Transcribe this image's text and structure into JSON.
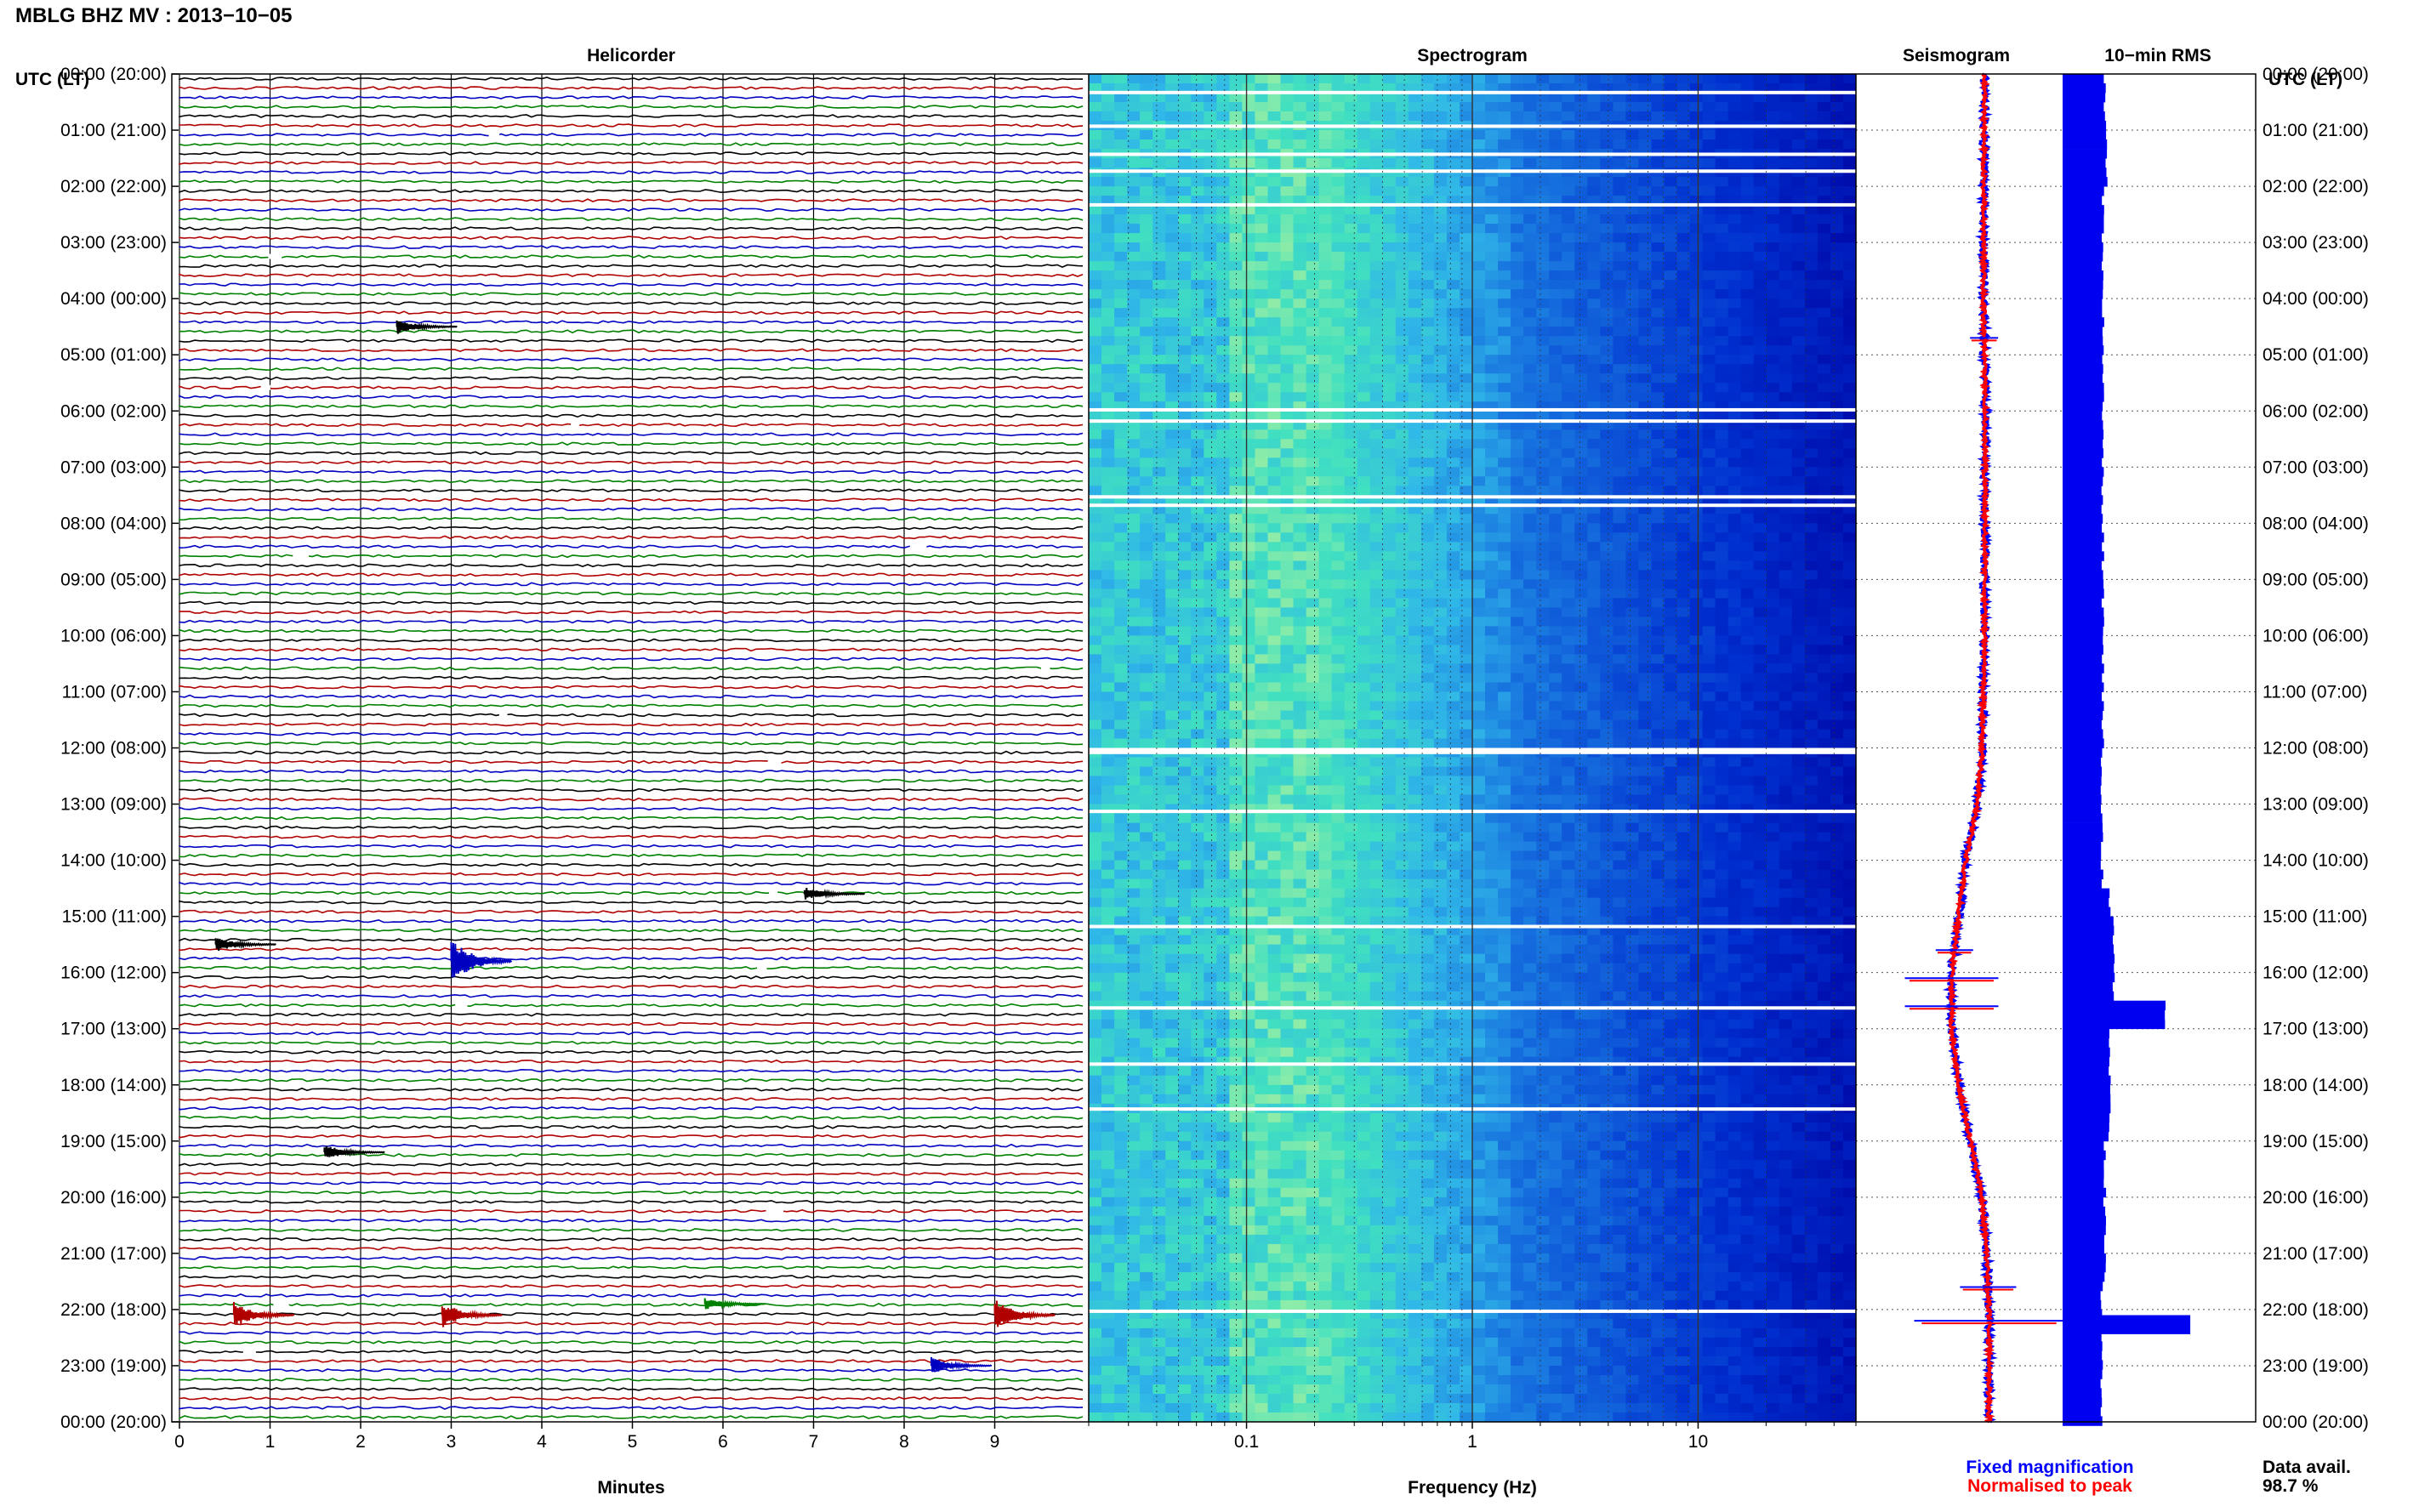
{
  "header": {
    "station_title": "MBLG BHZ MV : 2013−10−05"
  },
  "chart_data": [
    {
      "type": "line",
      "panel": "helicorder",
      "title": "Helicorder",
      "xlabel": "Minutes",
      "xlim": [
        0,
        10
      ],
      "x_ticks": [
        "0",
        "1",
        "2",
        "3",
        "4",
        "5",
        "6",
        "7",
        "8",
        "9"
      ],
      "ylabel_left": "UTC (LT)",
      "ylabel_right": "UTC (LT)",
      "y_ticks": [
        "00:00 (20:00)",
        "01:00 (21:00)",
        "02:00 (22:00)",
        "03:00 (23:00)",
        "04:00 (00:00)",
        "05:00 (01:00)",
        "06:00 (02:00)",
        "07:00 (03:00)",
        "08:00 (04:00)",
        "09:00 (05:00)",
        "10:00 (06:00)",
        "11:00 (07:00)",
        "12:00 (08:00)",
        "13:00 (09:00)",
        "14:00 (10:00)",
        "15:00 (11:00)",
        "16:00 (12:00)",
        "17:00 (13:00)",
        "18:00 (14:00)",
        "19:00 (15:00)",
        "20:00 (16:00)",
        "21:00 (17:00)",
        "22:00 (18:00)",
        "23:00 (19:00)",
        "00:00 (20:00)"
      ],
      "trace_colors": [
        "#000000",
        "#b00000",
        "#0000c0",
        "#008000"
      ],
      "lines_per_hour": 6,
      "events": [
        {
          "hour": 4.5,
          "minute": 2.4,
          "color": "#000000",
          "amp": 1.0
        },
        {
          "hour": 14.6,
          "minute": 6.9,
          "color": "#000000",
          "amp": 0.8
        },
        {
          "hour": 15.5,
          "minute": 0.4,
          "color": "#000000",
          "amp": 1.0
        },
        {
          "hour": 15.8,
          "minute": 3.0,
          "color": "#0000c0",
          "amp": 3.0
        },
        {
          "hour": 19.2,
          "minute": 1.6,
          "color": "#000000",
          "amp": 0.9
        },
        {
          "hour": 22.1,
          "minute": 0.6,
          "color": "#b00000",
          "amp": 1.6
        },
        {
          "hour": 22.1,
          "minute": 2.9,
          "color": "#b00000",
          "amp": 1.6
        },
        {
          "hour": 22.1,
          "minute": 9.0,
          "color": "#b00000",
          "amp": 2.0
        },
        {
          "hour": 21.9,
          "minute": 5.8,
          "color": "#008000",
          "amp": 0.7
        },
        {
          "hour": 23.0,
          "minute": 8.3,
          "color": "#0000c0",
          "amp": 1.0
        }
      ]
    },
    {
      "type": "heatmap",
      "panel": "spectrogram",
      "title": "Spectrogram",
      "xlabel": "Frequency (Hz)",
      "xscale": "log",
      "xlim": [
        0.02,
        50
      ],
      "x_ticks": [
        "0.1",
        "1",
        "10"
      ],
      "y_range_hours": [
        0,
        24
      ],
      "colormap": [
        "#0000a0",
        "#0030d0",
        "#1a7ae0",
        "#30b8e8",
        "#40e0c0",
        "#a8f0a0"
      ]
    },
    {
      "type": "line",
      "panel": "seismogram",
      "title": "Seismogram",
      "series": [
        {
          "name": "Fixed magnification",
          "color": "#0000ff"
        },
        {
          "name": "Normalised to peak",
          "color": "#ff0000"
        }
      ],
      "baseline": [
        [
          0,
          0.6
        ],
        [
          4,
          0.58
        ],
        [
          6,
          0.62
        ],
        [
          10,
          0.6
        ],
        [
          12,
          0.55
        ],
        [
          13,
          0.45
        ],
        [
          14,
          0.2
        ],
        [
          16,
          -0.1
        ],
        [
          17,
          -0.1
        ],
        [
          18,
          0.05
        ],
        [
          19,
          0.3
        ],
        [
          20,
          0.55
        ],
        [
          21,
          0.65
        ],
        [
          22,
          0.7
        ],
        [
          24,
          0.7
        ]
      ],
      "spikes": [
        {
          "hour": 4.7,
          "amp": 0.3
        },
        {
          "hour": 15.6,
          "amp": 0.4
        },
        {
          "hour": 16.1,
          "amp": 1.0
        },
        {
          "hour": 16.6,
          "amp": 1.0
        },
        {
          "hour": 21.6,
          "amp": 0.6
        },
        {
          "hour": 22.2,
          "amp": 1.6
        }
      ]
    },
    {
      "type": "bar",
      "panel": "rms",
      "title": "10−min RMS",
      "orientation": "horizontal",
      "bar_color": "#0000f0",
      "bins_per_hour": 6,
      "base_level": 0.45,
      "segments": [
        {
          "from": 0,
          "to": 1,
          "value": 0.45
        },
        {
          "from": 1,
          "to": 2,
          "value": 0.47
        },
        {
          "from": 2,
          "to": 12,
          "value": 0.43
        },
        {
          "from": 12,
          "to": 14.5,
          "value": 0.42
        },
        {
          "from": 14.5,
          "to": 15,
          "value": 0.5
        },
        {
          "from": 15,
          "to": 16.5,
          "value": 0.55
        },
        {
          "from": 16.5,
          "to": 17,
          "value": 1.1
        },
        {
          "from": 17,
          "to": 19,
          "value": 0.5
        },
        {
          "from": 19,
          "to": 21.5,
          "value": 0.45
        },
        {
          "from": 21.5,
          "to": 22.1,
          "value": 0.42
        },
        {
          "from": 22.1,
          "to": 22.4,
          "value": 1.35
        },
        {
          "from": 22.4,
          "to": 24,
          "value": 0.42
        }
      ]
    }
  ],
  "footer": {
    "fixed_magnification": "Fixed magnification",
    "normalised_to_peak": "Normalised to peak",
    "data_avail_label": "Data avail.",
    "data_avail_value": "98.7 %"
  }
}
